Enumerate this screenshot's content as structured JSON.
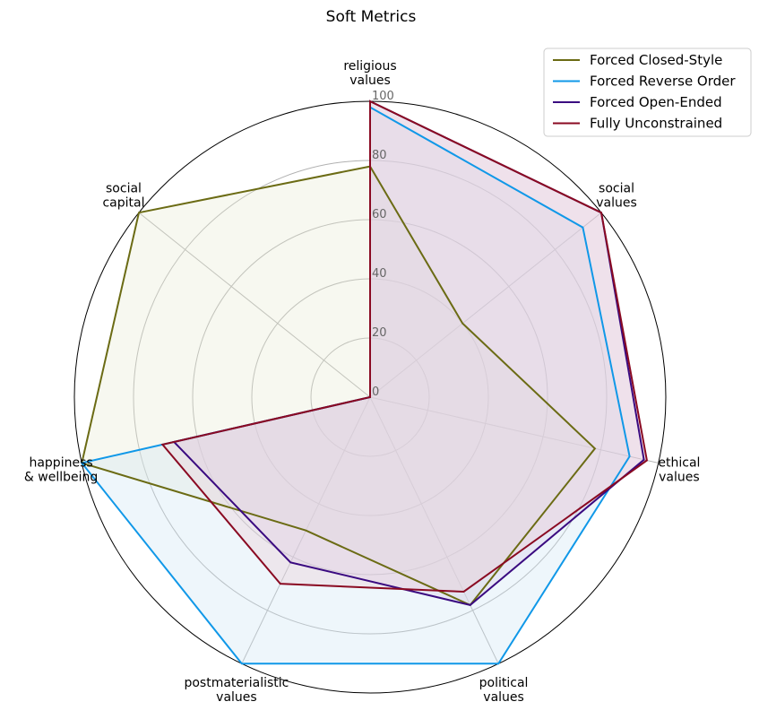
{
  "chart_data": {
    "type": "radar",
    "title": "Soft Metrics",
    "categories": [
      [
        "religious",
        "values"
      ],
      [
        "social",
        "values"
      ],
      [
        "ethical",
        "values"
      ],
      [
        "political",
        "values"
      ],
      [
        "postmaterialistic",
        "values"
      ],
      [
        "happiness",
        "& wellbeing"
      ],
      [
        "social",
        "capital"
      ]
    ],
    "rlim": [
      0,
      100
    ],
    "rticks": [
      0,
      20,
      40,
      60,
      80,
      100
    ],
    "rtick_labels": [
      "0",
      "20",
      "40",
      "60",
      "80",
      "100"
    ],
    "grid": true,
    "legend_position": "top-right",
    "series": [
      {
        "name": "Forced Closed-Style",
        "color": "#6b6b14",
        "fill": "#e8ebd4",
        "values": [
          78,
          40,
          78,
          78,
          50,
          100,
          100
        ]
      },
      {
        "name": "Forced Reverse Order",
        "color": "#1098e8",
        "fill": "#cfe6f4",
        "values": [
          98,
          92,
          90,
          100,
          100,
          100,
          0
        ]
      },
      {
        "name": "Forced Open-Ended",
        "color": "#3a0a80",
        "fill": "#d8ccec",
        "values": [
          100,
          100,
          95,
          78,
          62,
          68,
          0
        ]
      },
      {
        "name": "Fully Unconstrained",
        "color": "#8a0a22",
        "fill": "#ecccd4",
        "values": [
          100,
          100,
          96,
          73,
          70,
          72,
          0
        ]
      }
    ]
  }
}
